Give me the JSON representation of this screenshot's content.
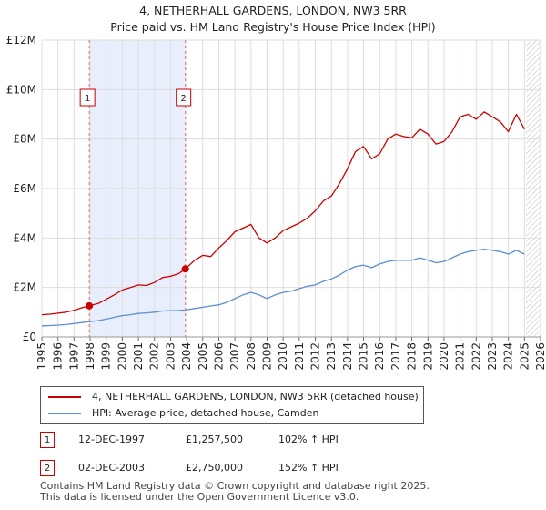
{
  "title": {
    "line1": "4, NETHERHALL GARDENS, LONDON, NW3 5RR",
    "line2": "Price paid vs. HM Land Registry's House Price Index (HPI)"
  },
  "colors": {
    "property": "#cc0000",
    "hpi": "#5b8fd0",
    "shade": "#e8eefb",
    "marker_dash": "#e07070"
  },
  "chart_data": {
    "type": "line",
    "title": "Price paid vs. HM Land Registry's House Price Index (HPI)",
    "xlabel": "",
    "ylabel": "",
    "xlim": [
      1995,
      2026
    ],
    "ylim": [
      0,
      12000000
    ],
    "y_ticks": [
      {
        "value": 0,
        "label": "£0"
      },
      {
        "value": 2000000,
        "label": "£2M"
      },
      {
        "value": 4000000,
        "label": "£4M"
      },
      {
        "value": 6000000,
        "label": "£6M"
      },
      {
        "value": 8000000,
        "label": "£8M"
      },
      {
        "value": 10000000,
        "label": "£10M"
      },
      {
        "value": 12000000,
        "label": "£12M"
      }
    ],
    "x_ticks": [
      "1995",
      "1996",
      "1997",
      "1998",
      "1999",
      "2000",
      "2001",
      "2002",
      "2003",
      "2004",
      "2005",
      "2006",
      "2007",
      "2008",
      "2009",
      "2010",
      "2011",
      "2012",
      "2013",
      "2014",
      "2015",
      "2016",
      "2017",
      "2018",
      "2019",
      "2020",
      "2021",
      "2022",
      "2023",
      "2024",
      "2025",
      "2026"
    ],
    "grid": true,
    "shaded_region": [
      1997.95,
      2003.92
    ],
    "future_hatch_from": 2025.1,
    "series": [
      {
        "name": "4, NETHERHALL GARDENS, LONDON, NW3 5RR (detached house)",
        "x": [
          1995.0,
          1995.5,
          1996.0,
          1996.5,
          1997.0,
          1997.5,
          1997.95,
          1998.5,
          1999.0,
          1999.5,
          2000.0,
          2000.5,
          2001.0,
          2001.5,
          2002.0,
          2002.5,
          2003.0,
          2003.5,
          2003.92,
          2004.5,
          2005.0,
          2005.5,
          2006.0,
          2006.5,
          2007.0,
          2007.5,
          2008.0,
          2008.5,
          2009.0,
          2009.5,
          2010.0,
          2010.5,
          2011.0,
          2011.5,
          2012.0,
          2012.5,
          2013.0,
          2013.5,
          2014.0,
          2014.5,
          2015.0,
          2015.5,
          2016.0,
          2016.5,
          2017.0,
          2017.5,
          2018.0,
          2018.5,
          2019.0,
          2019.5,
          2020.0,
          2020.5,
          2021.0,
          2021.5,
          2022.0,
          2022.5,
          2023.0,
          2023.5,
          2024.0,
          2024.5,
          2025.0
        ],
        "values": [
          900000,
          920000,
          960000,
          1000000,
          1080000,
          1180000,
          1257500,
          1350000,
          1520000,
          1700000,
          1900000,
          2000000,
          2100000,
          2080000,
          2200000,
          2400000,
          2450000,
          2560000,
          2750000,
          3100000,
          3300000,
          3250000,
          3600000,
          3900000,
          4250000,
          4400000,
          4550000,
          4000000,
          3800000,
          4000000,
          4300000,
          4450000,
          4600000,
          4800000,
          5100000,
          5500000,
          5700000,
          6200000,
          6800000,
          7500000,
          7700000,
          7200000,
          7400000,
          8000000,
          8200000,
          8100000,
          8050000,
          8400000,
          8200000,
          7800000,
          7900000,
          8300000,
          8900000,
          9000000,
          8800000,
          9100000,
          8900000,
          8700000,
          8300000,
          9000000,
          8400000
        ]
      },
      {
        "name": "HPI: Average price, detached house, Camden",
        "x": [
          1995.0,
          1995.5,
          1996.0,
          1996.5,
          1997.0,
          1997.5,
          1997.95,
          1998.5,
          1999.0,
          1999.5,
          2000.0,
          2000.5,
          2001.0,
          2001.5,
          2002.0,
          2002.5,
          2003.0,
          2003.5,
          2003.92,
          2004.5,
          2005.0,
          2005.5,
          2006.0,
          2006.5,
          2007.0,
          2007.5,
          2008.0,
          2008.5,
          2009.0,
          2009.5,
          2010.0,
          2010.5,
          2011.0,
          2011.5,
          2012.0,
          2012.5,
          2013.0,
          2013.5,
          2014.0,
          2014.5,
          2015.0,
          2015.5,
          2016.0,
          2016.5,
          2017.0,
          2017.5,
          2018.0,
          2018.5,
          2019.0,
          2019.5,
          2020.0,
          2020.5,
          2021.0,
          2021.5,
          2022.0,
          2022.5,
          2023.0,
          2023.5,
          2024.0,
          2024.5,
          2025.0
        ],
        "values": [
          450000,
          460000,
          480000,
          500000,
          540000,
          580000,
          620000,
          660000,
          720000,
          790000,
          860000,
          900000,
          950000,
          970000,
          1000000,
          1050000,
          1060000,
          1070000,
          1090000,
          1150000,
          1200000,
          1250000,
          1300000,
          1400000,
          1550000,
          1700000,
          1800000,
          1700000,
          1550000,
          1700000,
          1800000,
          1850000,
          1950000,
          2050000,
          2100000,
          2250000,
          2350000,
          2500000,
          2700000,
          2850000,
          2900000,
          2800000,
          2950000,
          3050000,
          3100000,
          3100000,
          3100000,
          3200000,
          3100000,
          3000000,
          3050000,
          3200000,
          3350000,
          3450000,
          3500000,
          3550000,
          3500000,
          3450000,
          3350000,
          3500000,
          3350000
        ]
      }
    ],
    "transactions": [
      {
        "label": "1",
        "x": 1997.95,
        "value": 1257500
      },
      {
        "label": "2",
        "x": 2003.92,
        "value": 2750000
      }
    ]
  },
  "legend": {
    "property": "4, NETHERHALL GARDENS, LONDON, NW3 5RR (detached house)",
    "hpi": "HPI: Average price, detached house, Camden"
  },
  "transactions_table": [
    {
      "num": "1",
      "date": "12-DEC-1997",
      "price": "£1,257,500",
      "hpi": "102% ↑ HPI"
    },
    {
      "num": "2",
      "date": "02-DEC-2003",
      "price": "£2,750,000",
      "hpi": "152% ↑ HPI"
    }
  ],
  "footer": {
    "line1": "Contains HM Land Registry data © Crown copyright and database right 2025.",
    "line2": "This data is licensed under the Open Government Licence v3.0."
  }
}
